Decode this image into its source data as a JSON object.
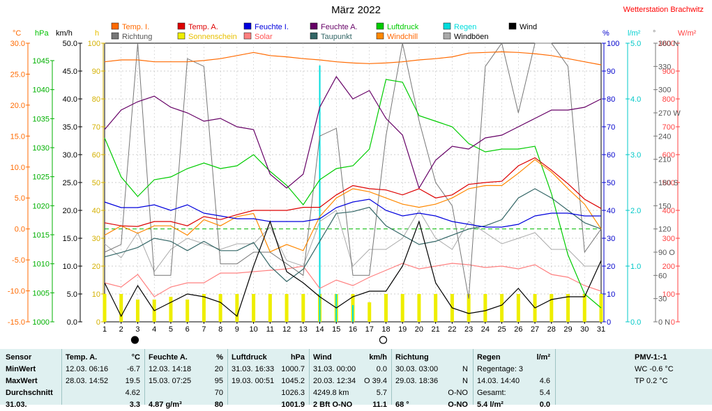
{
  "title": "März 2022",
  "station": "Wetterstation Brachwitz",
  "axes": {
    "unit_labels": [
      {
        "text": "°C",
        "color": "#ff6a00"
      },
      {
        "text": "hPa",
        "color": "#00c000"
      },
      {
        "text": "km/h",
        "color": "#000000"
      },
      {
        "text": "h",
        "color": "#e8c000"
      },
      {
        "text": "%",
        "color": "#0000cc"
      },
      {
        "text": "l/m²",
        "color": "#00d0d0"
      },
      {
        "text": "°",
        "color": "#777777"
      },
      {
        "text": "W/m²",
        "color": "#ff4040"
      }
    ],
    "temp_ticks": [
      "30.0",
      "25.0",
      "20.0",
      "15.0",
      "10.0",
      "5.0",
      "0.0",
      "-5.0",
      "-10.0",
      "-15.0"
    ],
    "hpa_ticks": [
      "1045",
      "1040",
      "1035",
      "1030",
      "1025",
      "1020",
      "1015",
      "1010",
      "1005",
      "1000"
    ],
    "kmh_ticks": [
      "50.0",
      "45.0",
      "40.0",
      "35.0",
      "30.0",
      "25.0",
      "20.0",
      "15.0",
      "10.0",
      "5.0",
      "0.0"
    ],
    "h_ticks": [
      "100",
      "90",
      "80",
      "70",
      "60",
      "50",
      "40",
      "30",
      "20",
      "10",
      "0"
    ],
    "pct_ticks": [
      "100",
      "90",
      "80",
      "70",
      "60",
      "50",
      "40",
      "30",
      "20",
      "10",
      "0"
    ],
    "rain_ticks": [
      "5.0",
      "4.0",
      "3.0",
      "2.0",
      "1.0",
      "0.0"
    ],
    "deg_ticks": [
      "360 N",
      "330",
      "300",
      "270 W",
      "240",
      "210",
      "180 S",
      "150",
      "120",
      "90 O",
      "60",
      "30",
      "0 N"
    ],
    "wm2_ticks": [
      "1000",
      "900",
      "800",
      "700",
      "600",
      "500",
      "400",
      "300",
      "200",
      "100",
      "0"
    ],
    "days": [
      "1",
      "2",
      "3",
      "4",
      "5",
      "6",
      "7",
      "8",
      "9",
      "10",
      "11",
      "12",
      "13",
      "14",
      "15",
      "16",
      "17",
      "18",
      "19",
      "20",
      "21",
      "22",
      "23",
      "24",
      "25",
      "26",
      "27",
      "28",
      "29",
      "30",
      "31"
    ]
  },
  "legend": [
    {
      "label": "Temp. I.",
      "color": "#ff6a00",
      "text_color": "#ff6a00"
    },
    {
      "label": "Temp. A.",
      "color": "#dd0000",
      "text_color": "#dd0000"
    },
    {
      "label": "Feuchte I.",
      "color": "#0000dd",
      "text_color": "#0000dd"
    },
    {
      "label": "Feuchte A.",
      "color": "#660066",
      "text_color": "#660066"
    },
    {
      "label": "Luftdruck",
      "color": "#00cc00",
      "text_color": "#00cc00"
    },
    {
      "label": "Regen",
      "color": "#00dddd",
      "text_color": "#00dddd"
    },
    {
      "label": "Wind",
      "color": "#000000",
      "text_color": "#000000"
    },
    {
      "label": "Richtung",
      "color": "#777777",
      "text_color": "#555555"
    },
    {
      "label": "Sonnenschein",
      "color": "#eeee00",
      "text_color": "#e8c000"
    },
    {
      "label": "Solar",
      "color": "#ff8080",
      "text_color": "#ff5050"
    },
    {
      "label": "Taupunkt",
      "color": "#336666",
      "text_color": "#336666"
    },
    {
      "label": "Windchill",
      "color": "#ff8800",
      "text_color": "#ff6600"
    },
    {
      "label": "Windböen",
      "color": "#aaaaaa",
      "text_color": "#000000"
    }
  ],
  "chart_data": {
    "type": "line",
    "x": [
      1,
      2,
      3,
      4,
      5,
      6,
      7,
      8,
      9,
      10,
      11,
      12,
      13,
      14,
      15,
      16,
      17,
      18,
      19,
      20,
      21,
      22,
      23,
      24,
      25,
      26,
      27,
      28,
      29,
      30,
      31
    ],
    "ylim_temp": [
      -15,
      30
    ],
    "ylim_hpa": [
      1000,
      1050
    ],
    "ylim_kmh": [
      0,
      50
    ],
    "ylim_pct": [
      0,
      100
    ],
    "ylim_rain": [
      0,
      5
    ],
    "ylim_deg": [
      0,
      360
    ],
    "ylim_wm2": [
      0,
      1000
    ],
    "reference_line_temp": 0,
    "series": [
      {
        "name": "Temp. I.",
        "axis": "temp",
        "color": "#ff6a00",
        "values": [
          27.0,
          27.3,
          27.3,
          27.0,
          27.0,
          27.0,
          27.2,
          27.5,
          28.0,
          28.5,
          28.0,
          27.8,
          27.5,
          27.3,
          27.0,
          26.8,
          26.7,
          26.8,
          27.0,
          27.3,
          27.5,
          27.8,
          28.4,
          28.5,
          28.6,
          28.5,
          28.3,
          28.0,
          27.5,
          27.0,
          26.5
        ]
      },
      {
        "name": "Temp. A.",
        "axis": "temp",
        "color": "#dd0000",
        "values": [
          1.0,
          0.5,
          0.4,
          1.2,
          1.2,
          0.5,
          2.0,
          1.5,
          2.3,
          3.0,
          3.0,
          3.0,
          3.5,
          3.5,
          5.5,
          7.0,
          6.5,
          6.3,
          5.5,
          6.5,
          5.0,
          5.5,
          7.2,
          7.5,
          7.7,
          10.2,
          11.5,
          9.5,
          7.3,
          4.8,
          3.3
        ]
      },
      {
        "name": "Feuchte I.",
        "axis": "pct",
        "color": "#0000dd",
        "values": [
          43,
          41,
          41,
          42,
          40,
          42,
          39,
          38,
          37,
          37,
          36,
          36,
          36,
          37,
          41,
          43,
          44,
          40,
          38,
          39,
          38,
          36,
          35,
          34,
          34,
          35,
          38,
          39,
          39,
          38,
          38
        ]
      },
      {
        "name": "Feuchte A.",
        "axis": "pct",
        "color": "#660066",
        "values": [
          69,
          76,
          79,
          81,
          77,
          75,
          72,
          73,
          70,
          69,
          53,
          48,
          53,
          77,
          88,
          80,
          83,
          73,
          67,
          48,
          58,
          63,
          62,
          66,
          67,
          70,
          73,
          76,
          76,
          77,
          80
        ]
      },
      {
        "name": "Luftdruck",
        "axis": "hpa",
        "color": "#00cc00",
        "values": [
          1033.0,
          1026.0,
          1022.5,
          1025.5,
          1026.0,
          1027.5,
          1028.5,
          1027.5,
          1028.0,
          1030.0,
          1027.0,
          1024.5,
          1021.0,
          1025.5,
          1027.5,
          1028.0,
          1031.0,
          1043.5,
          1043.0,
          1037.0,
          1036.0,
          1035.0,
          1032.0,
          1030.5,
          1031.0,
          1031.0,
          1031.5,
          1023.0,
          1012.0,
          1005.0,
          1002.5
        ]
      },
      {
        "name": "Taupunkt",
        "axis": "temp",
        "color": "#336666",
        "values": [
          -4.5,
          -3.8,
          -3.0,
          -1.5,
          -2.0,
          -3.5,
          -2.0,
          -3.5,
          -3.5,
          -2.2,
          -6.0,
          -8.5,
          -6.5,
          -2.0,
          2.5,
          2.8,
          3.5,
          0.5,
          -1.0,
          -2.5,
          -2.0,
          -1.0,
          0.0,
          0.5,
          1.5,
          5.0,
          6.5,
          5.0,
          3.0,
          1.0,
          0.0
        ]
      },
      {
        "name": "Windchill",
        "axis": "temp",
        "color": "#ff8800",
        "values": [
          -1.0,
          0.5,
          -0.7,
          0.5,
          0.5,
          -1.0,
          1.5,
          0.5,
          2.0,
          2.5,
          -3.7,
          -2.5,
          -3.5,
          2.0,
          5.0,
          6.5,
          6.0,
          5.0,
          4.0,
          3.5,
          4.0,
          5.0,
          6.5,
          7.0,
          7.0,
          9.0,
          11.2,
          9.2,
          6.5,
          4.0,
          0.0
        ]
      },
      {
        "name": "Wind",
        "axis": "kmh",
        "color": "#000000",
        "values": [
          7.0,
          1.0,
          6.5,
          2.0,
          3.5,
          5.0,
          4.5,
          3.5,
          1.0,
          10.0,
          18.0,
          9.0,
          7.0,
          4.5,
          2.5,
          4.5,
          5.5,
          5.5,
          10.0,
          18.0,
          7.0,
          2.5,
          1.5,
          2.0,
          3.0,
          6.0,
          2.5,
          4.0,
          4.5,
          4.5,
          11.0
        ]
      },
      {
        "name": "Windböen",
        "axis": "kmh",
        "color": "#aaaaaa",
        "values": [
          14.0,
          11.5,
          16.0,
          9.0,
          13.0,
          15.0,
          14.0,
          13.0,
          14.0,
          14.0,
          17.0,
          11.0,
          10.0,
          18.0,
          20.0,
          10.0,
          13.0,
          13.0,
          15.0,
          20.0,
          15.0,
          13.0,
          18.0,
          16.0,
          14.0,
          15.0,
          16.0,
          13.0,
          13.0,
          10.0,
          10.0
        ]
      },
      {
        "name": "Richtung",
        "axis": "deg",
        "color": "#777777",
        "values": [
          90,
          100,
          360,
          60,
          60,
          340,
          330,
          75,
          75,
          90,
          90,
          75,
          60,
          240,
          250,
          60,
          60,
          240,
          360,
          260,
          180,
          150,
          30,
          330,
          360,
          270,
          360,
          360,
          330,
          90,
          120
        ]
      },
      {
        "name": "Solar",
        "axis": "wm2",
        "color": "#ff8080",
        "values": [
          140,
          125,
          170,
          90,
          125,
          140,
          140,
          175,
          175,
          180,
          185,
          190,
          200,
          120,
          150,
          130,
          160,
          185,
          210,
          190,
          200,
          210,
          205,
          195,
          200,
          190,
          205,
          170,
          160,
          130,
          110
        ]
      },
      {
        "name": "Sonnenschein",
        "axis": "h",
        "type": "bar",
        "color": "#eeee00",
        "values": [
          10,
          10,
          8,
          8,
          9,
          8,
          10,
          10,
          10,
          10,
          10,
          10,
          10,
          10,
          10,
          10,
          7,
          10,
          10,
          10,
          10,
          10,
          10,
          10,
          10,
          10,
          10,
          10,
          10,
          10,
          10
        ]
      },
      {
        "name": "Regen",
        "axis": "rain",
        "type": "bar",
        "color": "#00dddd",
        "values": [
          0,
          0,
          0,
          0,
          0,
          0,
          0,
          0,
          0,
          0,
          0,
          0,
          0,
          4.6,
          0.5,
          0.3,
          0,
          0,
          0,
          0,
          0,
          0,
          0,
          0,
          0,
          0,
          0,
          0,
          0,
          0,
          0
        ]
      }
    ],
    "moon_markers": [
      {
        "day": 3,
        "phase": "new"
      },
      {
        "day": 18,
        "phase": "full"
      }
    ]
  },
  "stats": {
    "sensor": {
      "header": "Sensor",
      "rows": [
        "MinWert",
        "MaxWert",
        "Durchschnitt",
        "31.03."
      ]
    },
    "temp": {
      "header": "Temp. A.",
      "unit": "°C",
      "rows": [
        [
          "12.03.  06:16",
          "-6.7"
        ],
        [
          "28.03.  14:52",
          "19.5"
        ],
        [
          "",
          "4.62"
        ],
        [
          "",
          "3.3"
        ]
      ]
    },
    "feuchte": {
      "header": "Feuchte A.",
      "unit": "%",
      "rows": [
        [
          "12.03.  14:18",
          "20"
        ],
        [
          "15.03.  07:25",
          "95"
        ],
        [
          "",
          "70"
        ],
        [
          "4.87 g/m³",
          "80"
        ]
      ]
    },
    "druck": {
      "header": "Luftdruck",
      "unit": "hPa",
      "rows": [
        [
          "31.03.  16:33",
          "1000.7"
        ],
        [
          "19.03.  00:51",
          "1045.2"
        ],
        [
          "",
          "1026.3"
        ],
        [
          "",
          "1001.9"
        ]
      ]
    },
    "wind": {
      "header": "Wind",
      "unit": "km/h",
      "rows": [
        [
          "31.03.  00:00",
          "0.0"
        ],
        [
          "20.03.  12:34",
          "O 39.4"
        ],
        [
          "4249.8 km",
          "5.7"
        ],
        [
          "2 Bft O-NO",
          "11.1"
        ]
      ]
    },
    "richtung": {
      "header": "Richtung",
      "unit": "",
      "rows": [
        [
          "30.03.  03:00",
          "N"
        ],
        [
          "29.03.  18:36",
          "N"
        ],
        [
          "",
          "O-NO"
        ],
        [
          "68 °",
          "O-NO"
        ]
      ]
    },
    "regen": {
      "header": "Regen",
      "unit": "l/m²",
      "rows": [
        [
          "Regentage: 3",
          ""
        ],
        [
          "14.03.  14:40",
          "4.6"
        ],
        [
          "Gesamt:",
          "5.4"
        ],
        [
          "5.4 l/m²",
          "0.0"
        ]
      ]
    },
    "pmv": {
      "header": "PMV-1:-1",
      "rows": [
        "WC -0.6 °C",
        "TP 0.2 °C"
      ]
    }
  }
}
